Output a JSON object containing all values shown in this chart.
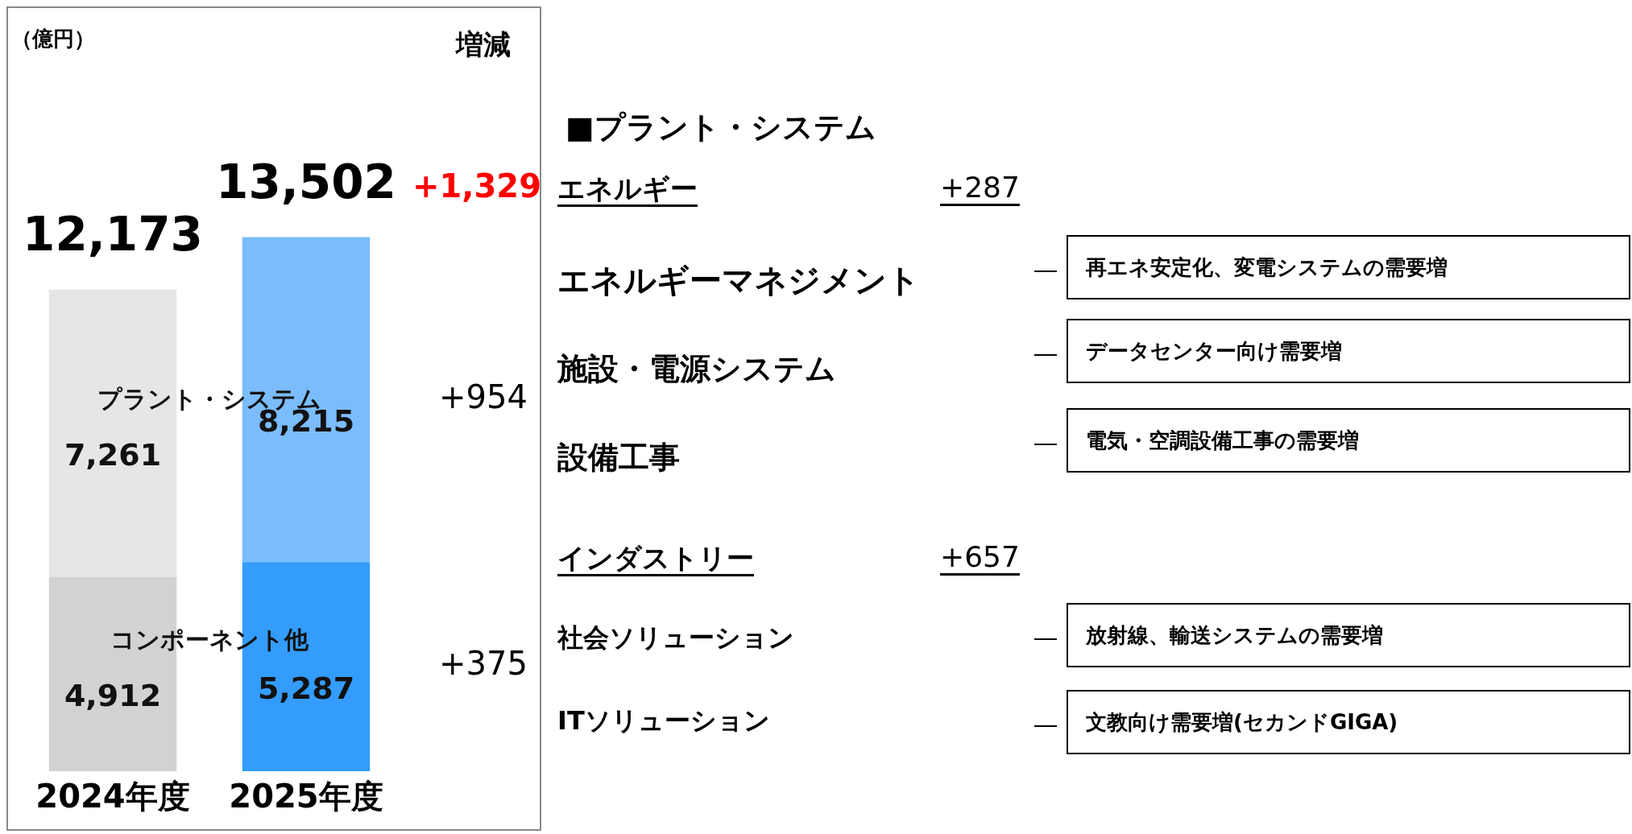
{
  "chart_data": [
    {
      "type": "bar",
      "stacked": true,
      "ylabel": "（億円）",
      "categories": [
        "2024年度",
        "2025年度"
      ],
      "series": [
        {
          "name": "コンポーネント他",
          "colors": [
            "#d3d1d1",
            "#349cfc"
          ],
          "values": [
            4912,
            5287
          ],
          "value_labels": [
            "4,912",
            "5,287"
          ]
        },
        {
          "name": "プラント・システム",
          "colors": [
            "#e6e6e6",
            "#7bbcfc"
          ],
          "values": [
            7261,
            8215
          ],
          "value_labels": [
            "7,261",
            "8,215"
          ]
        }
      ],
      "totals": [
        "12,173",
        "13,502"
      ],
      "annotations": [
        "増減",
        "+1,329",
        "+375",
        "+954"
      ]
    },
    {
      "type": "other",
      "title": "■プラント・システム",
      "annotations": [
        "エネルギー",
        "+287",
        "エネルギーマネジメント",
        "再エネ安定化、変電システムの需要増",
        "施設・電源システム",
        "データセンター向け需要増",
        "設備工事",
        "電気・空調設備工事の需要増",
        "インダストリー",
        "+657",
        "社会ソリューション",
        "放射線、輸送システムの需要増",
        "ITソリューション",
        "文教向け需要増(セカンドGIGA)"
      ]
    }
  ]
}
